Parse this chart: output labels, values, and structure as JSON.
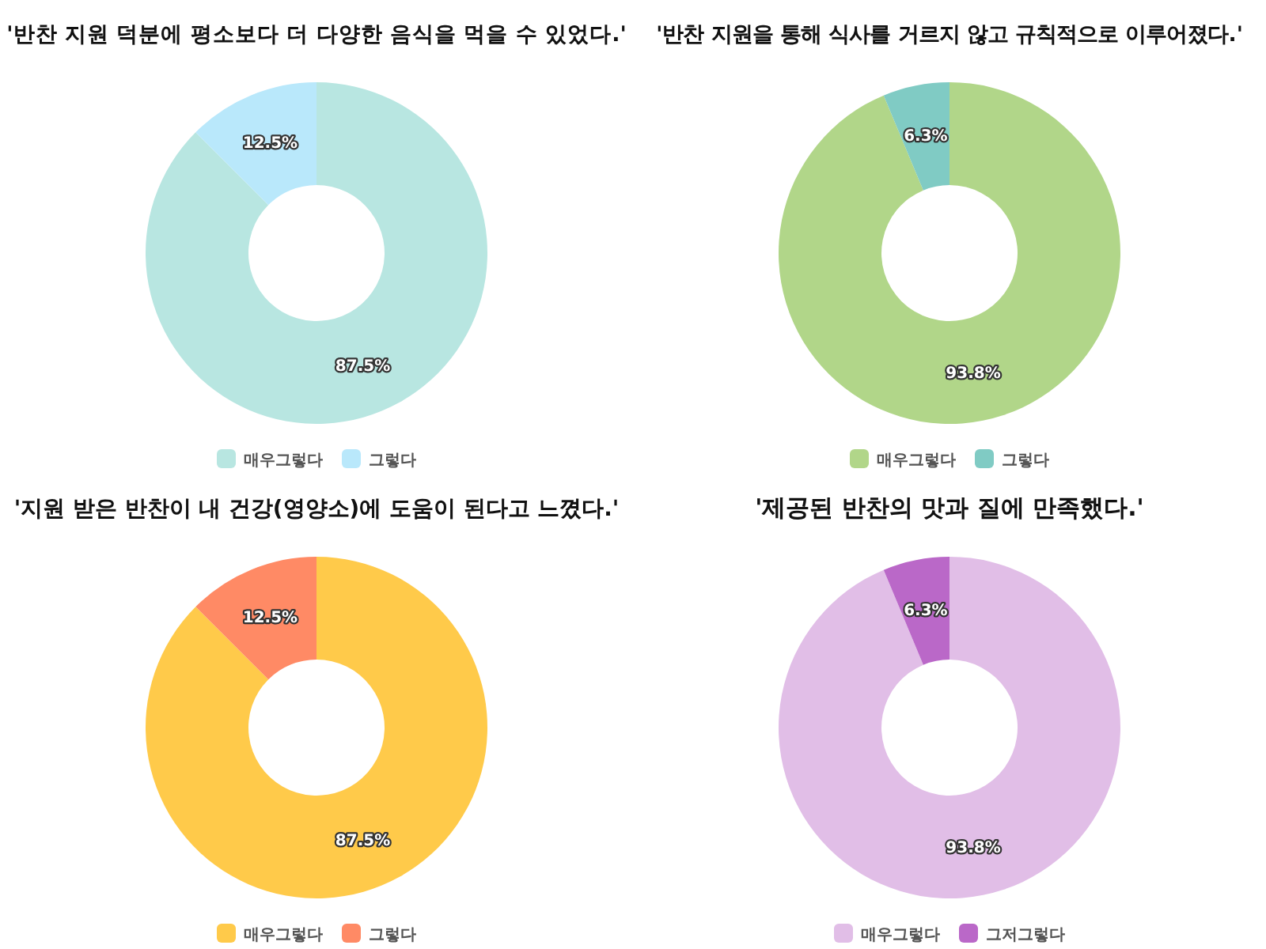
{
  "chart_data": [
    {
      "type": "donut",
      "title": "'반찬 지원 덕분에 평소보다 더 다양한 음식을 먹을 수 있었다.'",
      "categories": [
        "매우그렇다",
        "그렇다"
      ],
      "values": [
        87.5,
        12.5
      ],
      "colors": [
        "#b8e6e1",
        "#b9e8fb"
      ],
      "value_labels": [
        "87.5%",
        "12.5%"
      ],
      "legend": "bottom"
    },
    {
      "type": "donut",
      "title": "'반찬 지원을 통해 식사를 거르지 않고 규칙적으로 이루어졌다.'",
      "categories": [
        "매우그렇다",
        "그렇다"
      ],
      "values": [
        93.8,
        6.3
      ],
      "colors": [
        "#b1d689",
        "#80cbc4"
      ],
      "value_labels": [
        "93.8%",
        "6.3%"
      ],
      "legend": "bottom"
    },
    {
      "type": "donut",
      "title": "'지원 받은 반찬이 내 건강(영양소)에 도움이 된다고 느꼈다.'",
      "categories": [
        "매우그렇다",
        "그렇다"
      ],
      "values": [
        87.5,
        12.5
      ],
      "colors": [
        "#ffca4a",
        "#ff8a65"
      ],
      "value_labels": [
        "87.5%",
        "12.5%"
      ],
      "legend": "bottom"
    },
    {
      "type": "donut",
      "title": "'제공된 반찬의 맛과 질에 만족했다.'",
      "categories": [
        "매우그렇다",
        "그저그렇다"
      ],
      "values": [
        93.8,
        6.3
      ],
      "colors": [
        "#e1bee7",
        "#ba68c8"
      ],
      "value_labels": [
        "93.8%",
        "6.3%"
      ],
      "legend": "bottom"
    }
  ]
}
